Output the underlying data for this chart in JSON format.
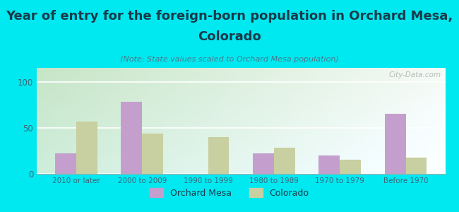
{
  "title_line1": "Year of entry for the foreign-born population in Orchard Mesa,",
  "title_line2": "Colorado",
  "subtitle": "(Note: State values scaled to Orchard Mesa population)",
  "categories": [
    "2010 or later",
    "2000 to 2009",
    "1990 to 1999",
    "1980 to 1989",
    "1970 to 1979",
    "Before 1970"
  ],
  "orchard_mesa": [
    22,
    78,
    0,
    22,
    20,
    65
  ],
  "colorado": [
    57,
    44,
    40,
    28,
    15,
    18
  ],
  "orchard_mesa_color": "#c49fce",
  "colorado_color": "#c8cfa0",
  "bg_outer": "#00e8f0",
  "bg_chart_topleft": "#c8e8c8",
  "bg_chart_topright": "#e8f4f8",
  "bg_chart_bottomleft": "#d8f0d0",
  "bg_chart_bottomright": "#f8fef8",
  "ylim": [
    0,
    115
  ],
  "yticks": [
    0,
    50,
    100
  ],
  "bar_width": 0.32,
  "watermark": "City-Data.com",
  "title_fontsize": 13,
  "subtitle_fontsize": 8,
  "title_color": "#1a3a4a",
  "subtitle_color": "#4a7a8a",
  "tick_color": "#3a6a7a",
  "legend_label1": "Orchard Mesa",
  "legend_label2": "Colorado"
}
